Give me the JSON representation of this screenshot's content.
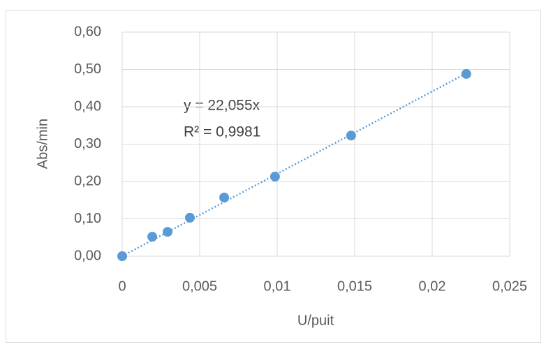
{
  "chart_data": {
    "type": "scatter",
    "x_label": "U/puit",
    "y_label": "Abs/min",
    "series": [
      {
        "name": "Abs/min",
        "color": "#5b9bd5",
        "x": [
          0,
          0.00194,
          0.00293,
          0.00437,
          0.00658,
          0.00986,
          0.01477,
          0.0222
        ],
        "values": [
          0,
          0.052,
          0.065,
          0.103,
          0.157,
          0.213,
          0.323,
          0.488
        ]
      }
    ],
    "trendline": {
      "slope": 22.055,
      "equation": "y = 22,055x",
      "r_squared": "R² = 0,9981"
    },
    "xlim": [
      0,
      0.025
    ],
    "xticks": [
      0,
      {
        "value": 0.005,
        "label": "0,005"
      },
      {
        "value": 0.01,
        "label": "0,01"
      },
      {
        "value": 0.015,
        "label": "0,015"
      },
      {
        "value": 0.02,
        "label": "0,02"
      },
      {
        "value": 0.025,
        "label": "0,025"
      }
    ],
    "ylim": [
      0,
      0.6
    ],
    "yticks": [
      {
        "value": 0,
        "label": "0,00"
      },
      {
        "value": 0.1,
        "label": "0,10"
      },
      {
        "value": 0.2,
        "label": "0,20"
      },
      {
        "value": 0.3,
        "label": "0,30"
      },
      {
        "value": 0.4,
        "label": "0,40"
      },
      {
        "value": 0.5,
        "label": "0,50"
      },
      {
        "value": 0.6,
        "label": "0,60"
      }
    ],
    "grid": true
  }
}
